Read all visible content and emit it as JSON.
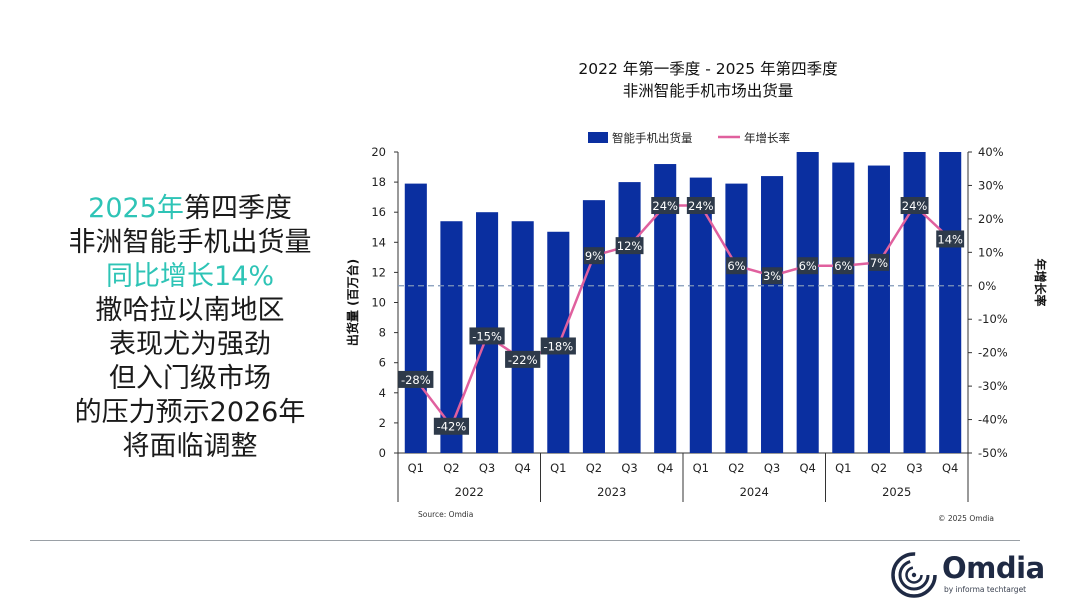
{
  "headline": {
    "line1_accent": "2025年",
    "line1_rest": "第四季度",
    "line2": "非洲智能手机出货量",
    "line3": "同比增长14%",
    "line4": "撒哈拉以南地区",
    "line5": "表现尤为强劲",
    "line6": "但入门级市场",
    "line7": "的压力预示2026年",
    "line8": "将面临调整"
  },
  "colors": {
    "bar": "#0a2fa0",
    "line": "#e0609e",
    "accent": "#2ec4b6",
    "label_bg": "#2e3a4a",
    "zero_line": "#7f96b8"
  },
  "chart_data": {
    "type": "bar",
    "title": "2022 年第一季度 - 2025 年第四季度",
    "subtitle": "非洲智能手机市场出货量",
    "quarters": [
      "Q1",
      "Q2",
      "Q3",
      "Q4",
      "Q1",
      "Q2",
      "Q3",
      "Q4",
      "Q1",
      "Q2",
      "Q3",
      "Q4",
      "Q1",
      "Q2",
      "Q3",
      "Q4"
    ],
    "years": [
      "2022",
      "2023",
      "2024",
      "2025"
    ],
    "ylabel_left": "出货量 (百万台)",
    "ylabel_right": "年增长率",
    "ylim_left": [
      0,
      20
    ],
    "ylim_right": [
      -50,
      40
    ],
    "yticks_left": [
      "0",
      "2",
      "4",
      "6",
      "8",
      "10",
      "12",
      "14",
      "16",
      "18",
      "20"
    ],
    "yticks_right": [
      "-50%",
      "-40%",
      "-30%",
      "-20%",
      "-10%",
      "0%",
      "10%",
      "20%",
      "30%",
      "40%"
    ],
    "legend": [
      "智能手机出货量",
      "年增长率"
    ],
    "legend_position": "top",
    "series": [
      {
        "name": "智能手机出货量",
        "type": "bar",
        "values": [
          17.9,
          15.4,
          16.0,
          15.4,
          14.7,
          16.8,
          18.0,
          19.2,
          18.3,
          17.9,
          18.4,
          20.1,
          19.3,
          19.1,
          20.1,
          20.1
        ]
      },
      {
        "name": "年增长率",
        "type": "line",
        "values": [
          -28,
          -42,
          -15,
          -22,
          -18,
          9,
          12,
          24,
          24,
          6,
          3,
          6,
          6,
          7,
          24,
          14
        ],
        "labels": [
          "-28%",
          "-42%",
          "-15%",
          "-22%",
          "-18%",
          "9%",
          "12%",
          "24%",
          "24%",
          "6%",
          "3%",
          "6%",
          "6%",
          "7%",
          "24%",
          "14%"
        ]
      }
    ],
    "source": "Source: Omdia",
    "copyright": "© 2025 Omdia"
  },
  "brand": {
    "name": "Omdia",
    "sub": "by informa techtarget"
  }
}
